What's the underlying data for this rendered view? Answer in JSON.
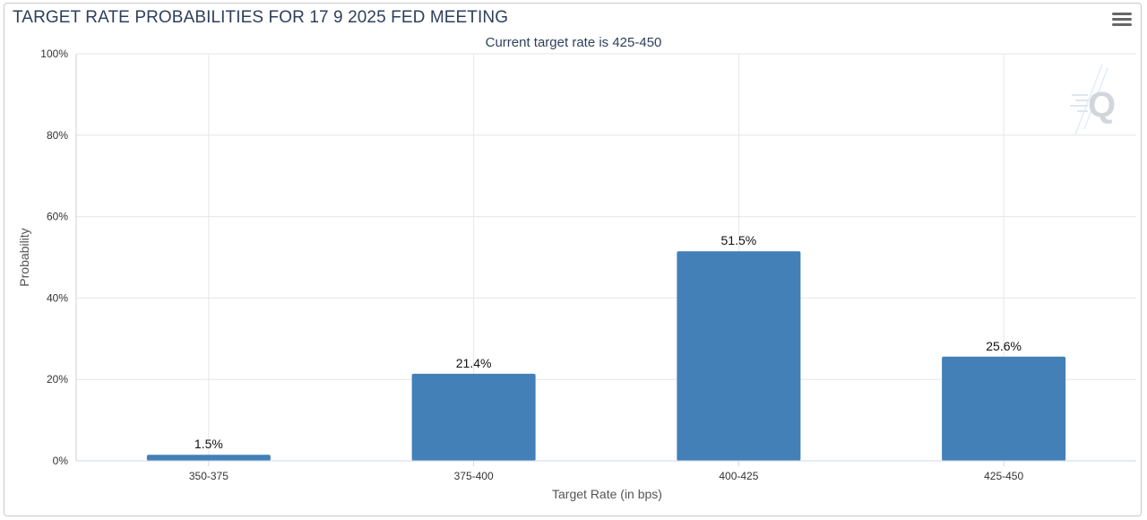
{
  "toolbar": {
    "menu_icon": "hamburger-menu-icon"
  },
  "watermark": {
    "icon": "q-logo-icon"
  },
  "chart_data": {
    "type": "bar",
    "title": "TARGET RATE PROBABILITIES FOR 17 9 2025 FED MEETING",
    "subtitle": "Current target rate is 425-450",
    "xlabel": "Target Rate (in bps)",
    "ylabel": "Probability",
    "categories": [
      "350-375",
      "375-400",
      "400-425",
      "425-450"
    ],
    "values": [
      1.5,
      21.4,
      51.5,
      25.6
    ],
    "data_labels": [
      "1.5%",
      "21.4%",
      "51.5%",
      "25.6%"
    ],
    "ylim": [
      0,
      100
    ],
    "y_ticks": [
      0,
      20,
      40,
      60,
      80,
      100
    ],
    "y_tick_labels": [
      "0%",
      "20%",
      "40%",
      "60%",
      "80%",
      "100%"
    ],
    "grid": true,
    "bar_color": "#4380b7"
  }
}
